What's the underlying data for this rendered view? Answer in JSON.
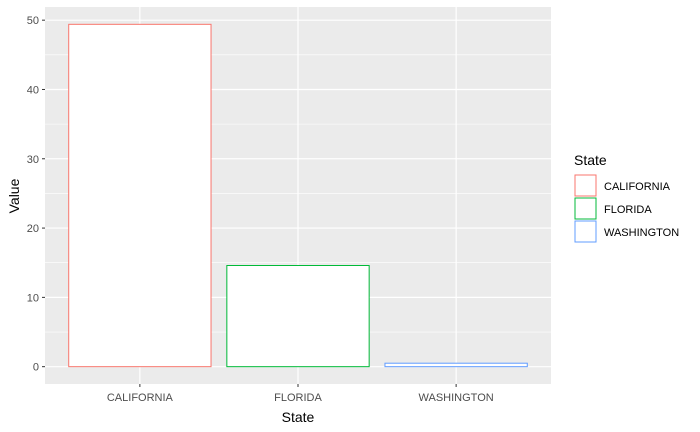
{
  "chart_data": {
    "type": "bar",
    "categories": [
      "CALIFORNIA",
      "FLORIDA",
      "WASHINGTON"
    ],
    "values": [
      49.4,
      14.6,
      0.5
    ],
    "colors": [
      "#F8766D",
      "#00BA38",
      "#619CFF"
    ],
    "fill": "#ffffff",
    "panel_background": "#ebebeb",
    "grid_color": "#ffffff",
    "grid": true,
    "xlabel": "State",
    "ylabel": "Value",
    "ylim": [
      -2.5,
      51.9
    ],
    "yticks": [
      0,
      10,
      20,
      30,
      40,
      50
    ],
    "legend": {
      "title": "State",
      "position": "right",
      "entries": [
        "CALIFORNIA",
        "FLORIDA",
        "WASHINGTON"
      ]
    }
  }
}
